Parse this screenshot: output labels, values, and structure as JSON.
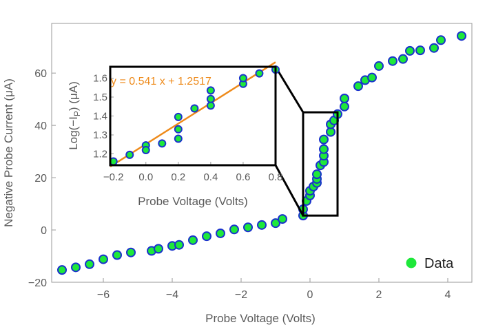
{
  "colors": {
    "marker_fill": "#1ee83a",
    "marker_stroke": "#1a33cc",
    "fit_line": "#ee8a1a",
    "axis": "#9a9a9a",
    "text": "#5a5a5a",
    "box": "#000000"
  },
  "chart_data": [
    {
      "type": "scatter",
      "name": "main",
      "xlabel": "Probe Voltage (Volts)",
      "ylabel": "Negative Probe Current (μA)",
      "xlim": [
        -7.5,
        4.7
      ],
      "ylim": [
        -20,
        79
      ],
      "xticks": [
        -6,
        -4,
        -2,
        0,
        2,
        4
      ],
      "yticks": [
        -20,
        0,
        20,
        40,
        60
      ],
      "xtick_labels": [
        "−6",
        "−4",
        "−2",
        "0",
        "2",
        "4"
      ],
      "ytick_labels": [
        "−20",
        "0",
        "20",
        "40",
        "60"
      ],
      "legend": {
        "label": "Data",
        "position": "bottom-right"
      },
      "zoom_box": {
        "x": [
          -0.2,
          0.8
        ],
        "y": [
          5.5,
          45
        ]
      },
      "series": [
        {
          "name": "Data",
          "x": [
            -7.2,
            -6.8,
            -6.4,
            -6.0,
            -5.6,
            -5.2,
            -4.6,
            -4.4,
            -4.0,
            -3.8,
            -3.4,
            -3.0,
            -2.6,
            -2.2,
            -1.8,
            -1.4,
            -1.0,
            -0.8,
            -0.2,
            -0.2,
            -0.1,
            0.0,
            0.0,
            0.1,
            0.2,
            0.2,
            0.2,
            0.3,
            0.4,
            0.4,
            0.4,
            0.4,
            0.6,
            0.6,
            0.7,
            0.8,
            1.0,
            1.0,
            1.4,
            1.6,
            1.8,
            2.0,
            2.4,
            2.7,
            2.9,
            3.2,
            3.6,
            3.8,
            4.4
          ],
          "y": [
            -15.3,
            -14.3,
            -13.1,
            -11.2,
            -9.6,
            -8.6,
            -8.0,
            -7.2,
            -6.1,
            -5.7,
            -3.9,
            -2.4,
            -1.3,
            0.2,
            1.0,
            1.9,
            2.6,
            4.2,
            5.5,
            7.9,
            11.1,
            13.2,
            15.0,
            16.6,
            18.0,
            19.5,
            21.3,
            24.7,
            26.0,
            28.4,
            30.9,
            34.6,
            37.5,
            40.4,
            41.9,
            44.3,
            47.2,
            50.3,
            55.0,
            57.3,
            58.3,
            62.7,
            64.6,
            65.4,
            68.5,
            68.7,
            69.6,
            72.6,
            74.2
          ]
        }
      ]
    },
    {
      "type": "scatter",
      "name": "inset",
      "xlabel": "Probe Voltage (Volts)",
      "ylabel": "Log(−I",
      "ylabel_sub": "P",
      "ylabel_unit": ") (μA)",
      "xlim": [
        -0.22,
        0.8
      ],
      "ylim": [
        1.14,
        1.66
      ],
      "xticks": [
        -0.2,
        0.0,
        0.2,
        0.4,
        0.6,
        0.8
      ],
      "yticks": [
        1.2,
        1.3,
        1.4,
        1.5,
        1.6
      ],
      "xtick_labels": [
        "−0.2",
        "0.0",
        "0.2",
        "0.4",
        "0.6",
        "0.8"
      ],
      "ytick_labels": [
        "1.2",
        "1.3",
        "1.4",
        "1.5",
        "1.6"
      ],
      "fit": {
        "label": "y = 0.541 x + 1.2517",
        "slope": 0.541,
        "intercept": 1.2517
      },
      "series": [
        {
          "name": "Data",
          "x": [
            -0.2,
            -0.1,
            0.0,
            0.0,
            0.1,
            0.2,
            0.2,
            0.2,
            0.3,
            0.4,
            0.4,
            0.4,
            0.6,
            0.6,
            0.7,
            0.8
          ],
          "y": [
            1.16,
            1.195,
            1.245,
            1.22,
            1.255,
            1.28,
            1.33,
            1.395,
            1.44,
            1.455,
            1.49,
            1.535,
            1.57,
            1.6,
            1.625,
            1.645
          ]
        }
      ]
    }
  ]
}
